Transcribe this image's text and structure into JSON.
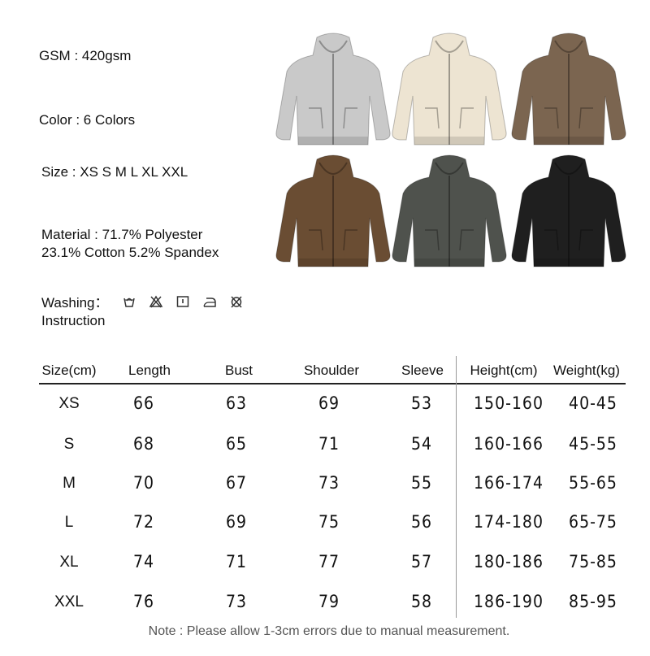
{
  "specs": {
    "gsm": "GSM : 420gsm",
    "color": "Color : 6 Colors",
    "size": "Size : XS S M L XL XXL",
    "material_1": "Material : 71.7% Polyester",
    "material_2": "23.1% Cotton 5.2% Spandex",
    "washing_1": "Washing：",
    "washing_2": "Instruction",
    "washing_icons": [
      "hand-wash-icon",
      "do-not-bleach-icon",
      "tumble-dry-icon",
      "iron-icon",
      "do-not-dry-clean-icon"
    ]
  },
  "hoodies": [
    {
      "name": "light-gray",
      "color": "#c9c9c9"
    },
    {
      "name": "cream",
      "color": "#ede4d2"
    },
    {
      "name": "mocha",
      "color": "#7b6550"
    },
    {
      "name": "brown",
      "color": "#6a4d33"
    },
    {
      "name": "charcoal",
      "color": "#4f524d"
    },
    {
      "name": "black",
      "color": "#1f1f1f"
    }
  ],
  "table": {
    "headers": [
      "Size(cm)",
      "Length",
      "Bust",
      "Shoulder",
      "Sleeve",
      "Height(cm)",
      "Weight(kg)"
    ],
    "rows": [
      [
        "XS",
        "66",
        "63",
        "69",
        "53",
        "150-160",
        "40-45"
      ],
      [
        "S",
        "68",
        "65",
        "71",
        "54",
        "160-166",
        "45-55"
      ],
      [
        "M",
        "70",
        "67",
        "73",
        "55",
        "166-174",
        "55-65"
      ],
      [
        "L",
        "72",
        "69",
        "75",
        "56",
        "174-180",
        "65-75"
      ],
      [
        "XL",
        "74",
        "71",
        "77",
        "57",
        "180-186",
        "75-85"
      ],
      [
        "XXL",
        "76",
        "73",
        "79",
        "58",
        "186-190",
        "85-95"
      ]
    ]
  },
  "note": "Note : Please allow 1-3cm errors due to manual measurement."
}
